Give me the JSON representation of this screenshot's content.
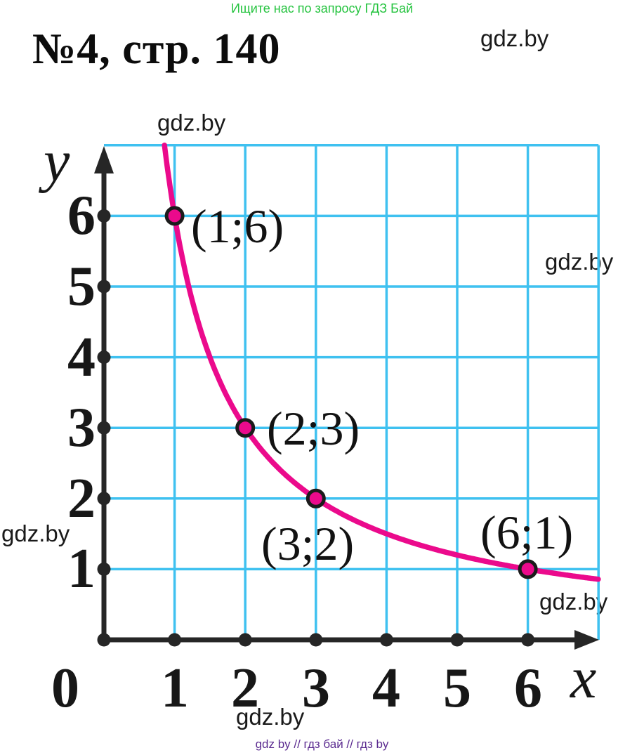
{
  "header": {
    "promo": "Ищите нас по запросу ГДЗ Бай",
    "title": "№4, стр. 140"
  },
  "watermarks": [
    {
      "id": "top-right",
      "text": "gdz.by"
    },
    {
      "id": "above-graph",
      "text": "gdz.by"
    },
    {
      "id": "right-middle",
      "text": "gdz.by"
    },
    {
      "id": "left-middle",
      "text": "gdz.by"
    },
    {
      "id": "grid-bottom-right",
      "text": "gdz.by"
    },
    {
      "id": "bottom-center",
      "text": "gdz.by"
    }
  ],
  "chart_data": {
    "type": "line",
    "title": "Hyperbola y = 6/x, branch in first quadrant",
    "curve": {
      "expression": "y = 6/x",
      "x_min": 0.857,
      "x_max": 7
    },
    "points": [
      {
        "x": 1,
        "y": 6,
        "label": "(1;6)"
      },
      {
        "x": 2,
        "y": 3,
        "label": "(2;3)"
      },
      {
        "x": 3,
        "y": 2,
        "label": "(3;2)"
      },
      {
        "x": 6,
        "y": 1,
        "label": "(6;1)"
      }
    ],
    "xlabel": "x",
    "ylabel": "y",
    "x_ticks": [
      "0",
      "1",
      "2",
      "3",
      "4",
      "5",
      "6"
    ],
    "y_ticks": [
      "1",
      "2",
      "3",
      "4",
      "5",
      "6"
    ],
    "xlim": [
      0,
      7
    ],
    "ylim": [
      0,
      7
    ],
    "grid": true,
    "legend": false,
    "colors": {
      "grid": "#3fc1f0",
      "curve": "#eb0a8c",
      "point_fill": "#eb0a8c",
      "point_stroke": "#1b1b1b",
      "axis": "#262626"
    }
  },
  "footer": {
    "text": "gdz by  //  гдз бай  //  гдз by"
  }
}
